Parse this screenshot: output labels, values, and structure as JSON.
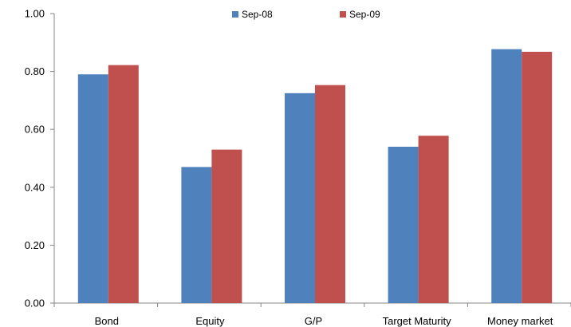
{
  "chart_data": {
    "type": "bar",
    "title": "",
    "xlabel": "",
    "ylabel": "",
    "categories": [
      "Bond",
      "Equity",
      "G/P",
      "Target Maturity",
      "Money market"
    ],
    "series": [
      {
        "name": "Sep-08",
        "color": "#4F81BD",
        "values": [
          0.79,
          0.47,
          0.725,
          0.54,
          0.877
        ]
      },
      {
        "name": "Sep-09",
        "color": "#C0504D",
        "values": [
          0.822,
          0.53,
          0.753,
          0.578,
          0.868
        ]
      }
    ],
    "ylim": [
      0,
      1.0
    ],
    "yticks": [
      "0.00",
      "0.20",
      "0.40",
      "0.60",
      "0.80",
      "1.00"
    ],
    "grid": false,
    "legend_position": "top-center"
  }
}
